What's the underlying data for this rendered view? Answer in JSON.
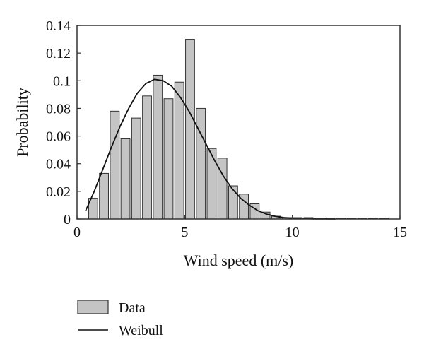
{
  "chart_data": {
    "type": "bar",
    "title": "",
    "xlabel": "Wind speed (m/s)",
    "ylabel": "Probability",
    "xlim": [
      0,
      15
    ],
    "ylim": [
      0,
      0.14
    ],
    "grid": false,
    "legend_position": "bottom-left",
    "x_ticks": [
      0,
      5,
      10,
      15
    ],
    "x_tick_labels": [
      "0",
      "5",
      "10",
      "15"
    ],
    "y_ticks": [
      0,
      0.02,
      0.04,
      0.06,
      0.08,
      0.1,
      0.12,
      0.14
    ],
    "y_tick_labels": [
      "0",
      "0.02",
      "0.04",
      "0.06",
      "0.08",
      "0.1",
      "0.12",
      "0.14"
    ],
    "bar_width": 0.42,
    "series": [
      {
        "name": "Data",
        "kind": "bar",
        "color": "#c4c4c4",
        "x": [
          0.75,
          1.25,
          1.75,
          2.25,
          2.75,
          3.25,
          3.75,
          4.25,
          4.75,
          5.25,
          5.75,
          6.25,
          6.75,
          7.25,
          7.75,
          8.25,
          8.75,
          9.25,
          9.75,
          10.25,
          10.75,
          11.25,
          11.75,
          12.25,
          12.75,
          13.25,
          13.75,
          14.25
        ],
        "values": [
          0.015,
          0.033,
          0.078,
          0.058,
          0.073,
          0.089,
          0.104,
          0.087,
          0.099,
          0.13,
          0.08,
          0.051,
          0.044,
          0.024,
          0.018,
          0.011,
          0.005,
          0.002,
          0.001,
          0.001,
          0.001,
          0.0005,
          0.0005,
          0.0005,
          0.0005,
          0.0005,
          0.0005,
          0.0005
        ]
      },
      {
        "name": "Weibull",
        "kind": "line",
        "color": "#111111",
        "x": [
          0.4,
          0.8,
          1.2,
          1.6,
          2.0,
          2.4,
          2.8,
          3.2,
          3.6,
          4.0,
          4.4,
          4.8,
          5.2,
          5.6,
          6.0,
          6.4,
          6.8,
          7.2,
          7.6,
          8.0,
          8.4,
          8.8,
          9.2,
          9.6,
          10.0,
          10.5,
          11.0,
          11.5,
          12.0
        ],
        "values": [
          0.006,
          0.02,
          0.036,
          0.052,
          0.067,
          0.08,
          0.091,
          0.098,
          0.101,
          0.1,
          0.096,
          0.088,
          0.078,
          0.066,
          0.054,
          0.042,
          0.031,
          0.022,
          0.015,
          0.01,
          0.006,
          0.0035,
          0.002,
          0.001,
          0.0006,
          0.0003,
          0.0001,
          5e-05,
          0.0
        ]
      }
    ]
  }
}
